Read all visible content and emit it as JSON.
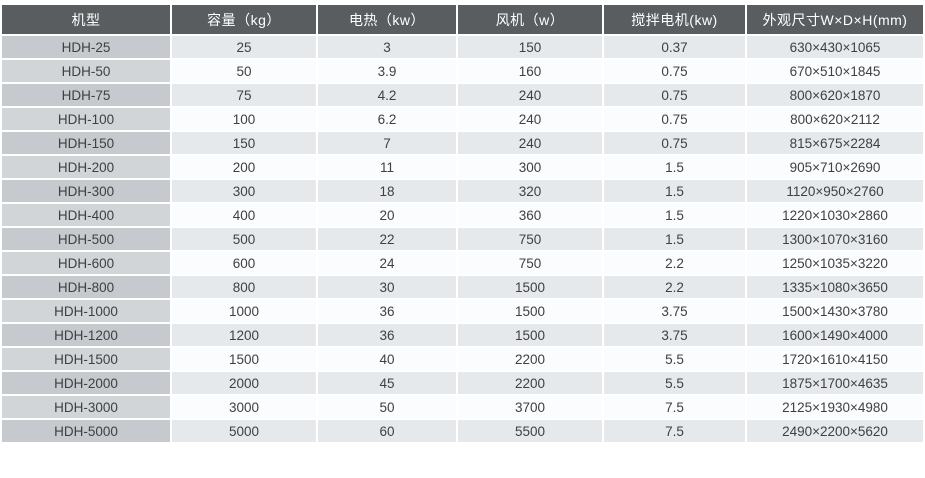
{
  "colors": {
    "header_background": "#595d60",
    "header_text": "#ffffff",
    "row_stripe": "#e6e9eb",
    "row_plain": "#fbfcfd",
    "model_column_stripe": "#c6cace",
    "model_column_plain": "#d2d5d8",
    "body_text": "#3d4144",
    "grid_lines": "#ffffff"
  },
  "chart_data": {
    "type": "table",
    "title": "",
    "columns": [
      "机型",
      "容量（kg）",
      "电热（kw）",
      "风机（w）",
      "搅拌电机(kw)",
      "外观尺寸W×D×H(mm)"
    ],
    "rows": [
      [
        "HDH-25",
        "25",
        "3",
        "150",
        "0.37",
        "630×430×1065"
      ],
      [
        "HDH-50",
        "50",
        "3.9",
        "160",
        "0.75",
        "670×510×1845"
      ],
      [
        "HDH-75",
        "75",
        "4.2",
        "240",
        "0.75",
        "800×620×1870"
      ],
      [
        "HDH-100",
        "100",
        "6.2",
        "240",
        "0.75",
        "800×620×2112"
      ],
      [
        "HDH-150",
        "150",
        "7",
        "240",
        "0.75",
        "815×675×2284"
      ],
      [
        "HDH-200",
        "200",
        "11",
        "300",
        "1.5",
        "905×710×2690"
      ],
      [
        "HDH-300",
        "300",
        "18",
        "320",
        "1.5",
        "1120×950×2760"
      ],
      [
        "HDH-400",
        "400",
        "20",
        "360",
        "1.5",
        "1220×1030×2860"
      ],
      [
        "HDH-500",
        "500",
        "22",
        "750",
        "1.5",
        "1300×1070×3160"
      ],
      [
        "HDH-600",
        "600",
        "24",
        "750",
        "2.2",
        "1250×1035×3220"
      ],
      [
        "HDH-800",
        "800",
        "30",
        "1500",
        "2.2",
        "1335×1080×3650"
      ],
      [
        "HDH-1000",
        "1000",
        "36",
        "1500",
        "3.75",
        "1500×1430×3780"
      ],
      [
        "HDH-1200",
        "1200",
        "36",
        "1500",
        "3.75",
        "1600×1490×4000"
      ],
      [
        "HDH-1500",
        "1500",
        "40",
        "2200",
        "5.5",
        "1720×1610×4150"
      ],
      [
        "HDH-2000",
        "2000",
        "45",
        "2200",
        "5.5",
        "1875×1700×4635"
      ],
      [
        "HDH-3000",
        "3000",
        "50",
        "3700",
        "7.5",
        "2125×1930×4980"
      ],
      [
        "HDH-5000",
        "5000",
        "60",
        "5500",
        "7.5",
        "2490×2200×5620"
      ]
    ]
  }
}
